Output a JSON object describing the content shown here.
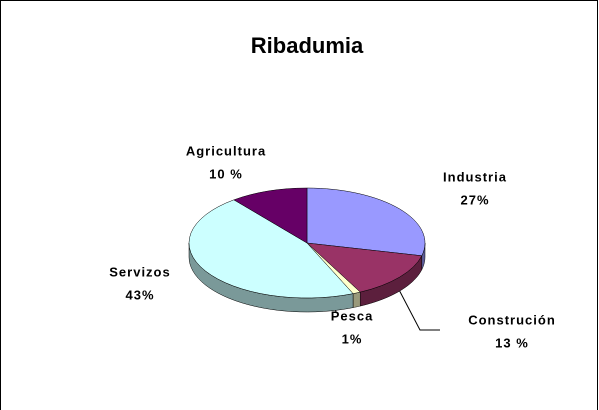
{
  "chart_data": {
    "type": "pie3d",
    "title": "Ribadumia",
    "categories": [
      "Industria",
      "Construción",
      "Pesca",
      "Servizos",
      "Agricultura"
    ],
    "values": [
      27,
      13,
      1,
      43,
      10
    ],
    "value_labels": [
      "27%",
      "13 %",
      "1%",
      "43%",
      "10 %"
    ],
    "colors": [
      "#9999ff",
      "#993366",
      "#ffffcc",
      "#ccffff",
      "#660066"
    ]
  }
}
